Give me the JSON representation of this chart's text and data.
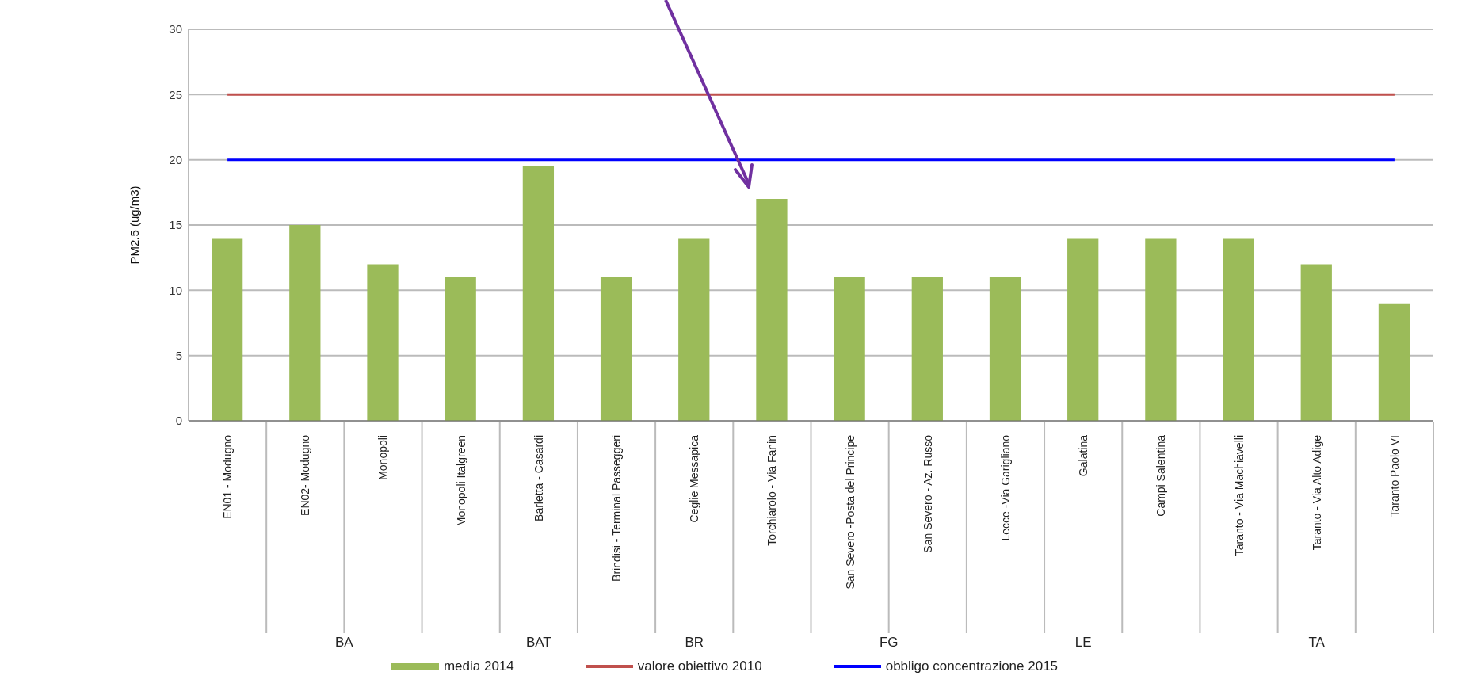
{
  "chart_data": {
    "type": "bar",
    "ylabel": "PM2.5 (ug/m3)",
    "categories": [
      "EN01 - Modugno",
      "EN02- Modugno",
      "Monopoli",
      "Monopoli Italgreen",
      "Barletta - Casardi",
      "Brindisi - Terminal Passeggeri",
      "Ceglie Messapica",
      "Torchiarolo - Via Fanin",
      "San Severo -Posta del Principe",
      "San Severo - Az. Russo",
      "Lecce -Via Garigliano",
      "Galatina",
      "Campi Salentina",
      "Taranto - Via Machiavelli",
      "Taranto - Via Alto Adige",
      "Taranto Paolo VI"
    ],
    "series": [
      {
        "name": "media 2014",
        "color": "#9bbb59",
        "values": [
          14,
          15,
          12,
          11,
          19.5,
          11,
          14,
          17,
          11,
          11,
          11,
          14,
          14,
          14,
          12,
          9
        ]
      },
      {
        "name": "valore obiettivo 2010",
        "type": "line",
        "color": "#c0504d",
        "values": [
          25,
          25,
          25,
          25,
          25,
          25,
          25,
          25,
          25,
          25,
          25,
          25,
          25,
          25,
          25,
          25
        ]
      },
      {
        "name": "obbligo concentrazione 2015",
        "type": "line",
        "color": "#0000ff",
        "values": [
          20,
          20,
          20,
          20,
          20,
          20,
          20,
          20,
          20,
          20,
          20,
          20,
          20,
          20,
          20,
          20
        ]
      }
    ],
    "annotations": [
      "BA",
      "BAT",
      "BR",
      "FG",
      "LE",
      "TA"
    ],
    "ylim": [
      0,
      30
    ],
    "yticks": [
      0,
      5,
      10,
      15,
      20,
      25,
      30
    ],
    "grid": "y",
    "legend": "bottom",
    "marker": "none"
  }
}
